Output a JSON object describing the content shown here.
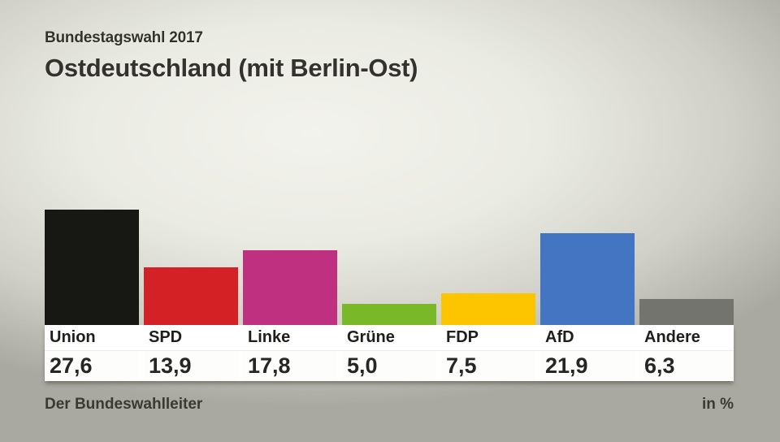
{
  "header": {
    "kicker": "Bundestagswahl 2017",
    "title": "Ostdeutschland (mit Berlin-Ost)"
  },
  "footer": {
    "source": "Der Bundeswahlleiter",
    "unit_label": "in %"
  },
  "chart_data": {
    "type": "bar",
    "title": "Ostdeutschland (mit Berlin-Ost)",
    "subtitle": "Bundestagswahl 2017",
    "unit": "%",
    "categories": [
      "Union",
      "SPD",
      "Linke",
      "Grüne",
      "FDP",
      "AfD",
      "Andere"
    ],
    "values": [
      27.6,
      13.9,
      17.8,
      5.0,
      7.5,
      21.9,
      6.3
    ],
    "value_labels": [
      "27,6",
      "13,9",
      "17,8",
      "5,0",
      "7,5",
      "21,9",
      "6,3"
    ],
    "colors": [
      "#171714",
      "#d42125",
      "#bf3180",
      "#79b829",
      "#fdc500",
      "#4375c2",
      "#74746f"
    ],
    "ylim": [
      0,
      27.6
    ],
    "grid": false,
    "legend": "none",
    "source": "Der Bundeswahlleiter"
  }
}
